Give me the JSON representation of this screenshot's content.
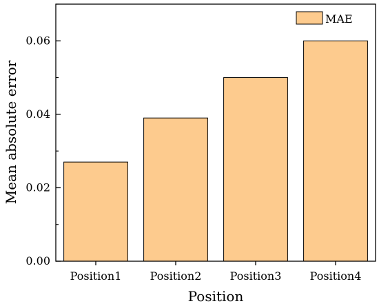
{
  "chart_data": {
    "type": "bar",
    "categories": [
      "Position1",
      "Position2",
      "Position3",
      "Position4"
    ],
    "series": [
      {
        "name": "MAE",
        "values": [
          0.027,
          0.039,
          0.05,
          0.06
        ]
      }
    ],
    "xlabel": "Position",
    "ylabel": "Mean absolute error",
    "ylim": [
      0,
      0.07
    ],
    "yticks": [
      "0.00",
      "0.02",
      "0.04",
      "0.06"
    ],
    "grid": false,
    "legend_position": "top-right",
    "colors": {
      "bar_fill": "#fdcb8e",
      "bar_stroke": "#000000",
      "axis": "#000000",
      "background": "#ffffff"
    }
  }
}
